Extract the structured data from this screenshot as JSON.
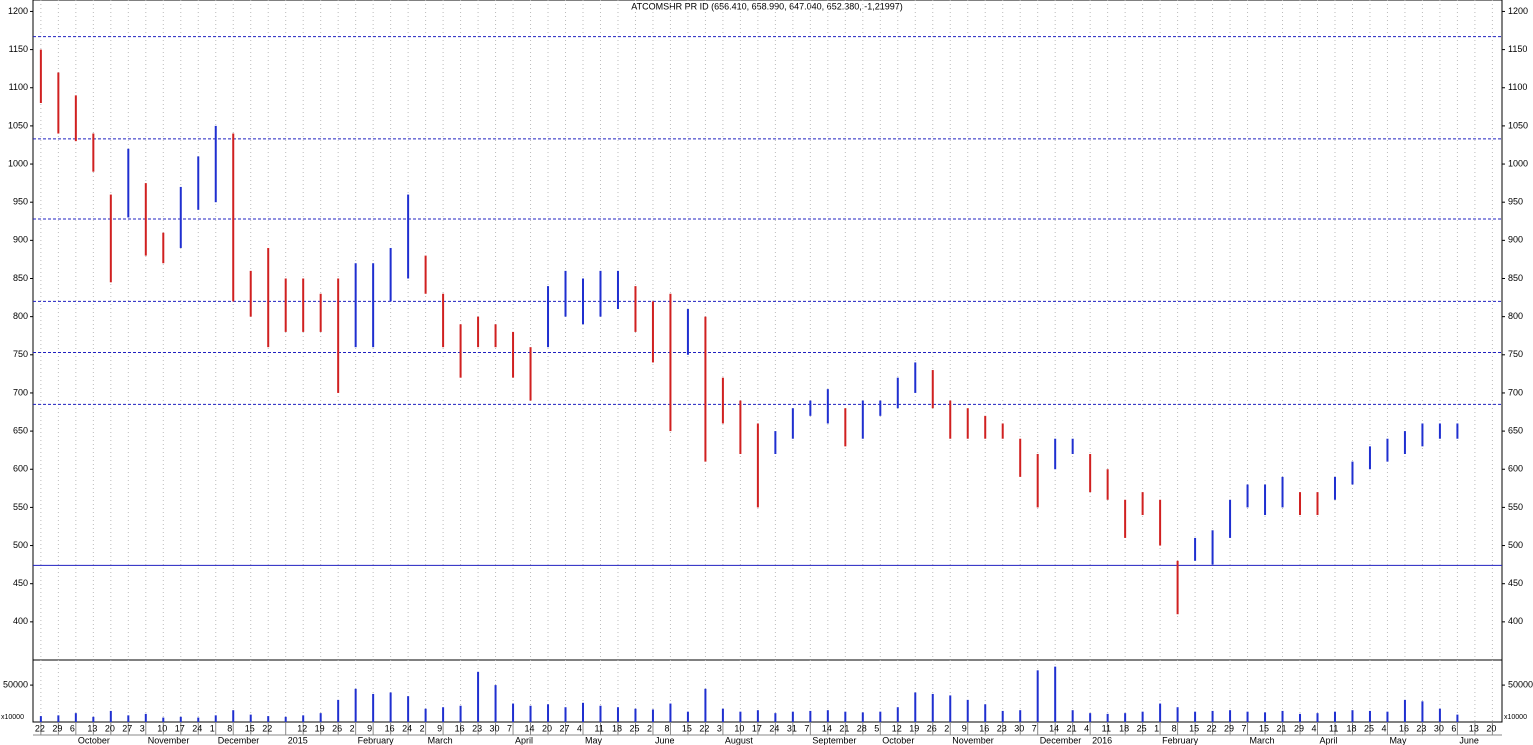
{
  "chart_data": {
    "type": "bar",
    "title": "ATCOMSHR PR ID (656.410, 658.990, 647.040, 652.380, -1,21997)",
    "categories": [
      "22",
      "29",
      "6",
      "13",
      "20",
      "27",
      "3",
      "10",
      "17",
      "24",
      "1",
      "8",
      "15",
      "22",
      null,
      "12",
      "19",
      "26",
      "2",
      "9",
      "16",
      "24",
      "2",
      "9",
      "16",
      "23",
      "30",
      "7",
      "14",
      "20",
      "27",
      "4",
      "11",
      "18",
      "25",
      "2",
      "8",
      "15",
      "22",
      "3",
      "10",
      "17",
      "24",
      "31",
      "7",
      "14",
      "21",
      "28",
      "5",
      "12",
      "19",
      "26",
      "2",
      "9",
      "16",
      "23",
      "30",
      "7",
      "14",
      "21",
      "4",
      "11",
      "18",
      "25",
      "1",
      "8",
      "15",
      "22",
      "29",
      "7",
      "15",
      "21",
      "29",
      "4",
      "11",
      "18",
      "25",
      "4",
      "16",
      "23",
      "30",
      "6",
      "13",
      "20"
    ],
    "months": [
      null,
      null,
      "October",
      null,
      null,
      null,
      "November",
      null,
      null,
      null,
      "December",
      null,
      null,
      null,
      "2015",
      null,
      null,
      null,
      "February",
      null,
      null,
      null,
      "March",
      null,
      null,
      null,
      null,
      "April",
      null,
      null,
      null,
      "May",
      null,
      null,
      null,
      "June",
      null,
      null,
      null,
      "August",
      null,
      null,
      null,
      null,
      "September",
      null,
      null,
      null,
      "October",
      null,
      null,
      null,
      "November",
      null,
      null,
      null,
      null,
      "December",
      null,
      null,
      "2016",
      null,
      null,
      null,
      "February",
      null,
      null,
      null,
      null,
      "March",
      null,
      null,
      null,
      "April",
      null,
      null,
      null,
      "May",
      null,
      null,
      null,
      "June",
      null,
      null
    ],
    "high": [
      1150,
      1120,
      1090,
      1040,
      960,
      1020,
      975,
      910,
      970,
      1010,
      1050,
      1040,
      860,
      890,
      850,
      850,
      830,
      850,
      870,
      870,
      890,
      960,
      880,
      830,
      790,
      800,
      790,
      780,
      760,
      840,
      860,
      850,
      860,
      860,
      840,
      820,
      830,
      810,
      800,
      720,
      690,
      660,
      650,
      680,
      690,
      705,
      680,
      690,
      690,
      720,
      740,
      730,
      690,
      680,
      670,
      660,
      640,
      620,
      640,
      640,
      620,
      600,
      560,
      570,
      560,
      480,
      510,
      520,
      560,
      580,
      580,
      590,
      570,
      570,
      590,
      610,
      630,
      640,
      650,
      660,
      660,
      660,
      null,
      null
    ],
    "low": [
      1080,
      1040,
      1030,
      990,
      845,
      930,
      880,
      870,
      890,
      940,
      950,
      820,
      800,
      760,
      780,
      780,
      780,
      700,
      760,
      760,
      820,
      850,
      830,
      760,
      720,
      760,
      760,
      720,
      690,
      760,
      800,
      790,
      800,
      810,
      780,
      740,
      650,
      750,
      610,
      660,
      620,
      550,
      620,
      640,
      670,
      660,
      630,
      640,
      670,
      680,
      700,
      680,
      640,
      640,
      640,
      640,
      590,
      550,
      600,
      620,
      570,
      560,
      510,
      540,
      500,
      410,
      480,
      475,
      510,
      550,
      540,
      550,
      540,
      540,
      560,
      580,
      600,
      610,
      620,
      630,
      640,
      640,
      null,
      null
    ],
    "up": [
      false,
      false,
      false,
      false,
      false,
      true,
      false,
      false,
      true,
      true,
      true,
      false,
      false,
      false,
      false,
      false,
      false,
      false,
      true,
      true,
      true,
      true,
      false,
      false,
      false,
      false,
      false,
      false,
      false,
      true,
      true,
      true,
      true,
      true,
      false,
      false,
      false,
      true,
      false,
      false,
      false,
      false,
      true,
      true,
      true,
      true,
      false,
      true,
      true,
      true,
      true,
      false,
      false,
      false,
      false,
      false,
      false,
      false,
      true,
      true,
      false,
      false,
      false,
      false,
      false,
      false,
      true,
      true,
      true,
      true,
      true,
      true,
      false,
      false,
      true,
      true,
      true,
      true,
      true,
      true,
      true,
      true,
      null,
      null
    ],
    "up_color": "#1f2fd0",
    "down_color": "#d02020",
    "ylim": [
      350,
      1215
    ],
    "yticks": [
      400,
      450,
      500,
      550,
      600,
      650,
      700,
      750,
      800,
      850,
      900,
      950,
      1000,
      1050,
      1100,
      1150,
      1200
    ],
    "dashed_levels": [
      1167,
      1033,
      928,
      820,
      753,
      685
    ],
    "solid_levels": [
      474
    ],
    "level_color": "#2020c0",
    "volume": [
      8000,
      9000,
      12000,
      7000,
      15000,
      9000,
      11000,
      6000,
      7000,
      6000,
      9000,
      16000,
      10000,
      8000,
      7000,
      9000,
      12000,
      30000,
      45000,
      38000,
      40000,
      35000,
      18000,
      20000,
      22000,
      68000,
      50000,
      25000,
      22000,
      24000,
      20000,
      26000,
      22000,
      20000,
      18000,
      17000,
      25000,
      14000,
      45000,
      18000,
      14000,
      16000,
      12000,
      14000,
      15000,
      16000,
      14000,
      13000,
      14000,
      20000,
      40000,
      38000,
      36000,
      30000,
      24000,
      15000,
      16000,
      70000,
      75000,
      16000,
      12000,
      11000,
      12000,
      14000,
      25000,
      20000,
      14000,
      15000,
      16000,
      14000,
      13000,
      15000,
      11000,
      12000,
      14000,
      16000,
      15000,
      14000,
      30000,
      28000,
      18000,
      10000,
      null,
      null
    ],
    "volume_color": "#1f2fd0",
    "vlim": [
      0,
      84000
    ],
    "vticks": [
      50000
    ],
    "volume_unit": "x10000"
  }
}
